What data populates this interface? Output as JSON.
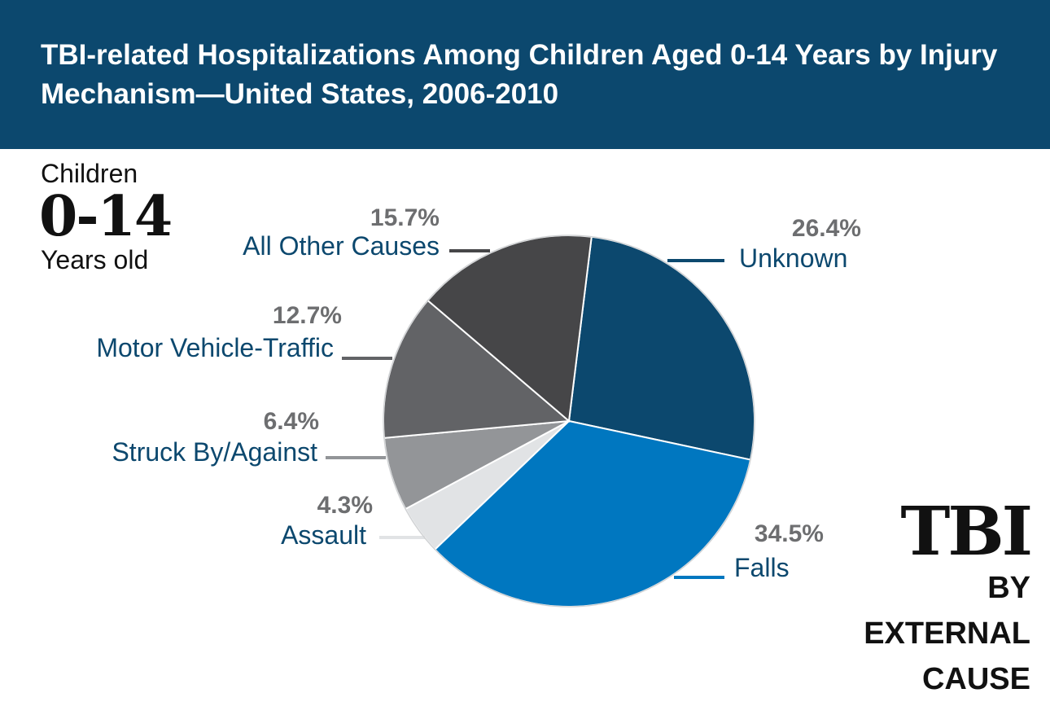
{
  "chart_data": {
    "type": "pie",
    "title": "TBI-related Hospitalizations Among Children Aged 0-14 Years by Injury Mechanism—United States, 2006-2010",
    "unit": "%",
    "slices": [
      {
        "label": "Unknown",
        "value": 26.4,
        "display": "26.4%",
        "color": "#0c486e"
      },
      {
        "label": "Falls",
        "value": 34.5,
        "display": "34.5%",
        "color": "#0077c0"
      },
      {
        "label": "Assault",
        "value": 4.3,
        "display": "4.3%",
        "color": "#e1e3e5"
      },
      {
        "label": "Struck By/Against",
        "value": 6.4,
        "display": "6.4%",
        "color": "#939598"
      },
      {
        "label": "Motor Vehicle-Traffic",
        "value": 12.7,
        "display": "12.7%",
        "color": "#626366"
      },
      {
        "label": "All Other Causes",
        "value": 15.7,
        "display": "15.7%",
        "color": "#464648"
      }
    ]
  },
  "side": {
    "line1": "Children",
    "line2": "0-14",
    "line3": "Years old"
  },
  "badge": {
    "line1": "TBI",
    "line2": "BY",
    "line3": "EXTERNAL",
    "line4": "CAUSE"
  }
}
